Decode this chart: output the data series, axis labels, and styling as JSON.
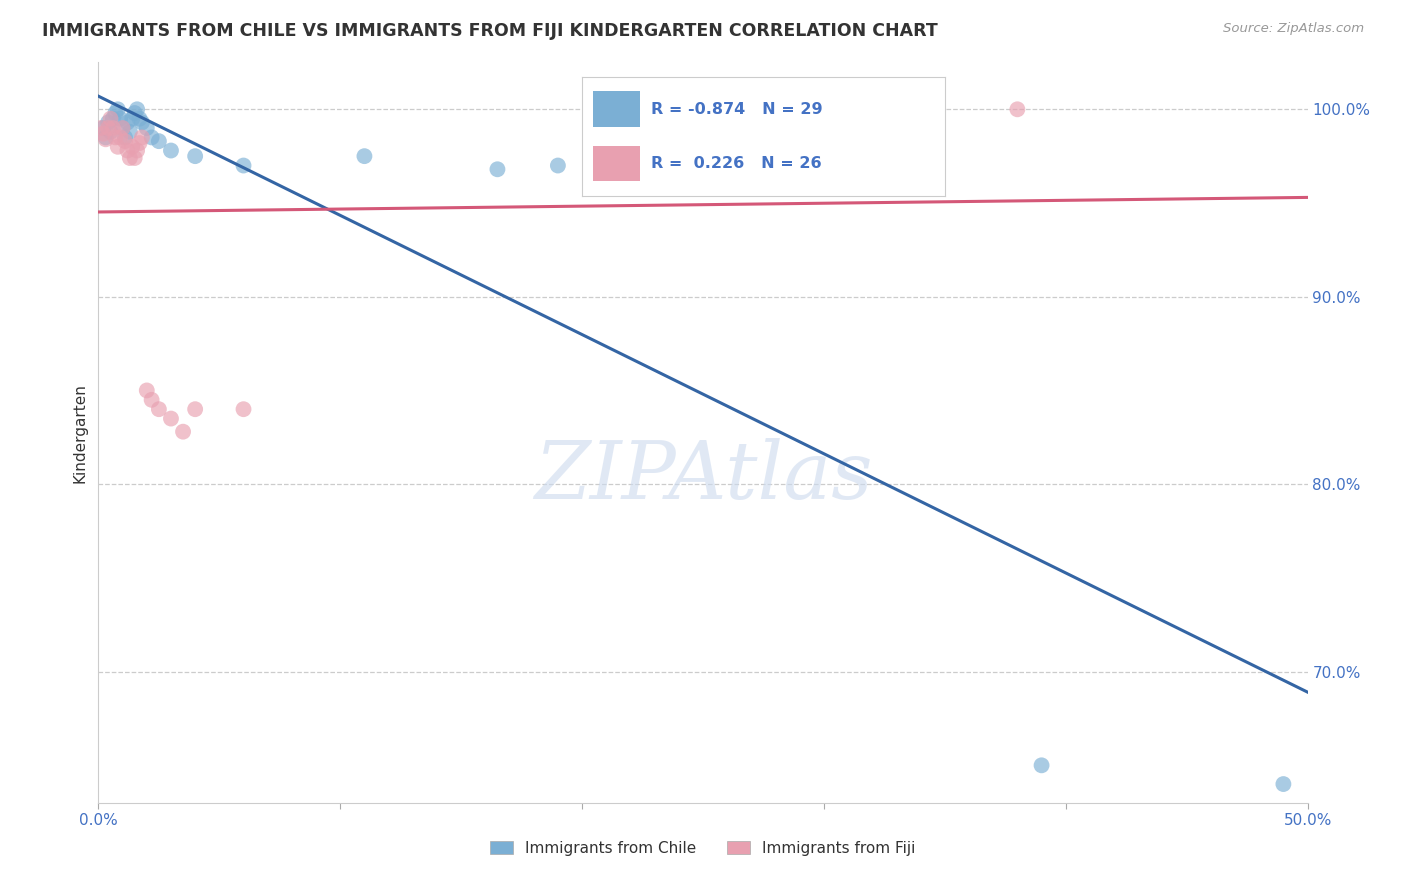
{
  "title": "IMMIGRANTS FROM CHILE VS IMMIGRANTS FROM FIJI KINDERGARTEN CORRELATION CHART",
  "source": "Source: ZipAtlas.com",
  "ylabel": "Kindergarten",
  "xlim": [
    0.0,
    0.5
  ],
  "ylim": [
    0.63,
    1.025
  ],
  "xtick_vals": [
    0.0,
    0.1,
    0.2,
    0.3,
    0.4,
    0.5
  ],
  "xticklabels": [
    "0.0%",
    "",
    "",
    "",
    "",
    "50.0%"
  ],
  "yticks_right": [
    1.0,
    0.9,
    0.8,
    0.7
  ],
  "yticklabels_right": [
    "100.0%",
    "90.0%",
    "80.0%",
    "70.0%"
  ],
  "grid_color": "#cccccc",
  "background_color": "#ffffff",
  "watermark": "ZIPAtlas",
  "legend_label_chile": "Immigrants from Chile",
  "legend_label_fiji": "Immigrants from Fiji",
  "R_chile": -0.874,
  "N_chile": 29,
  "R_fiji": 0.226,
  "N_fiji": 26,
  "chile_color": "#7bafd4",
  "fiji_color": "#e8a0b0",
  "chile_line_color": "#3465a4",
  "fiji_line_color": "#d45878",
  "chile_points_x": [
    0.002,
    0.003,
    0.004,
    0.005,
    0.006,
    0.007,
    0.008,
    0.009,
    0.01,
    0.011,
    0.012,
    0.013,
    0.014,
    0.015,
    0.016,
    0.017,
    0.018,
    0.02,
    0.022,
    0.025,
    0.03,
    0.04,
    0.06,
    0.11,
    0.165,
    0.19,
    0.39,
    0.49,
    0.285
  ],
  "chile_points_y": [
    0.99,
    0.985,
    0.993,
    0.988,
    0.995,
    0.998,
    1.0,
    0.995,
    0.99,
    0.985,
    0.993,
    0.988,
    0.995,
    0.998,
    1.0,
    0.995,
    0.993,
    0.99,
    0.985,
    0.983,
    0.978,
    0.975,
    0.97,
    0.975,
    0.968,
    0.97,
    0.65,
    0.64,
    0.968
  ],
  "fiji_points_x": [
    0.001,
    0.002,
    0.003,
    0.004,
    0.005,
    0.006,
    0.007,
    0.008,
    0.009,
    0.01,
    0.011,
    0.012,
    0.013,
    0.014,
    0.015,
    0.016,
    0.017,
    0.018,
    0.02,
    0.022,
    0.025,
    0.03,
    0.035,
    0.04,
    0.06,
    0.38
  ],
  "fiji_points_y": [
    0.99,
    0.987,
    0.984,
    0.99,
    0.995,
    0.99,
    0.985,
    0.98,
    0.985,
    0.99,
    0.983,
    0.978,
    0.974,
    0.98,
    0.974,
    0.978,
    0.982,
    0.985,
    0.85,
    0.845,
    0.84,
    0.835,
    0.828,
    0.84,
    0.84,
    1.0
  ]
}
